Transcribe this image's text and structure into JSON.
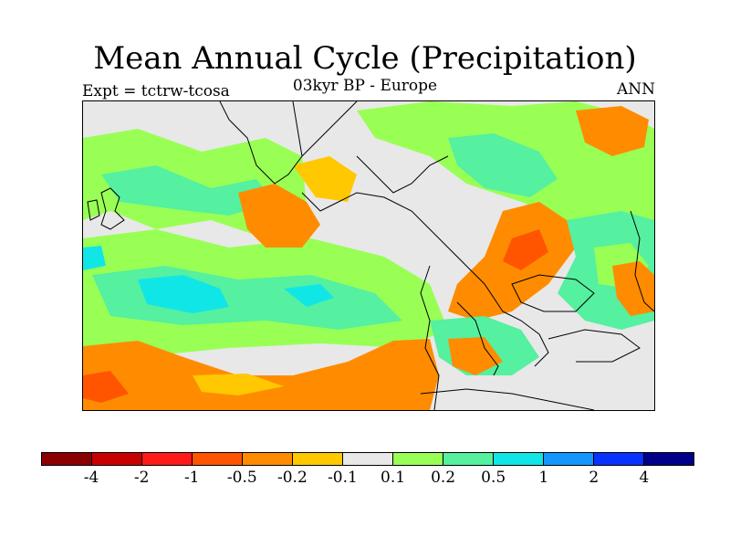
{
  "header": {
    "title": "Mean Annual Cycle (Precipitation)",
    "subtitle": "03kyr BP - Europe",
    "experiment": "Expt = tctrw-tcosa",
    "season": "ANN"
  },
  "legend": {
    "colors": [
      "#8b0000",
      "#c80000",
      "#ff1a1a",
      "#ff5500",
      "#ff8c00",
      "#ffc800",
      "#e8e8e8",
      "#99ff55",
      "#55f0a0",
      "#11e6e6",
      "#1496ff",
      "#0a32ff",
      "#00008b"
    ],
    "labels": [
      "-4",
      "-2",
      "-1",
      "-0.5",
      "-0.2",
      "-0.1",
      "0.1",
      "0.2",
      "0.5",
      "1",
      "2",
      "4"
    ]
  },
  "map": {
    "region": "Europe",
    "field": "precipitation difference",
    "coastline_color": "#000000"
  }
}
